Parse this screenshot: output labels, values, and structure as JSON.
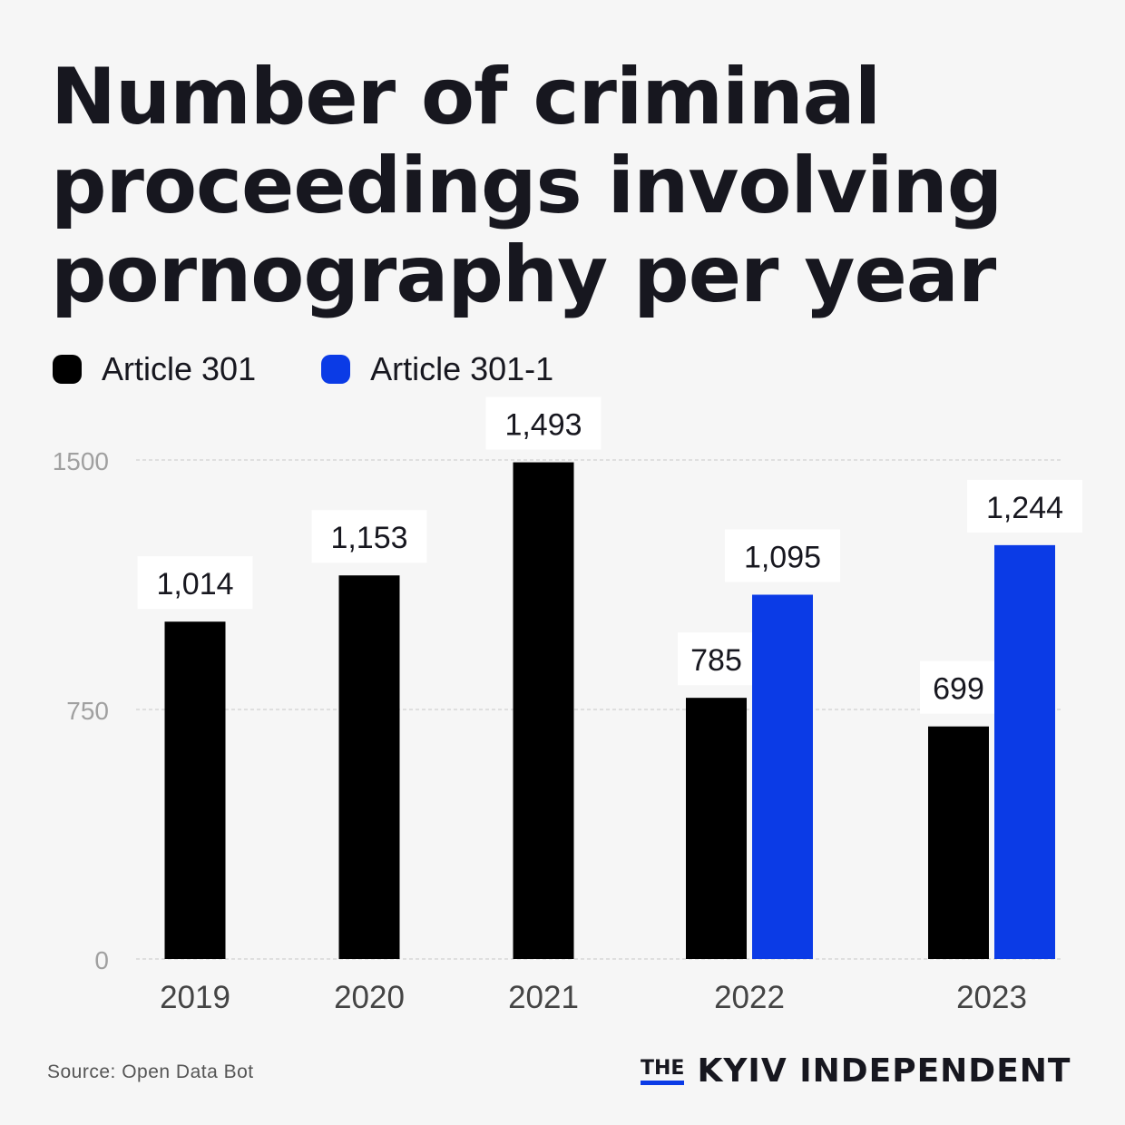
{
  "title": "Number of criminal proceedings involving pornography per year",
  "legend": [
    {
      "label": "Article 301",
      "color": "#000000"
    },
    {
      "label": "Article 301-1",
      "color": "#0b3be6"
    }
  ],
  "source": "Source: Open Data Bot",
  "brand": {
    "the": "THE",
    "name": "KYIV INDEPENDENT"
  },
  "chart_data": {
    "type": "bar",
    "categories": [
      "2019",
      "2020",
      "2021",
      "2022",
      "2023"
    ],
    "series": [
      {
        "name": "Article 301",
        "color": "#000000",
        "values": [
          1014,
          1153,
          1493,
          785,
          699
        ],
        "labels": [
          "1,014",
          "1,153",
          "1,493",
          "785",
          "699"
        ]
      },
      {
        "name": "Article 301-1",
        "color": "#0b3be6",
        "values": [
          null,
          null,
          null,
          1095,
          1244
        ],
        "labels": [
          "",
          "",
          "",
          "1,095",
          "1,244"
        ]
      }
    ],
    "yticks": [
      0,
      750,
      1500
    ],
    "ylim": [
      0,
      1500
    ],
    "grid": true,
    "legend_position": "top-left"
  }
}
